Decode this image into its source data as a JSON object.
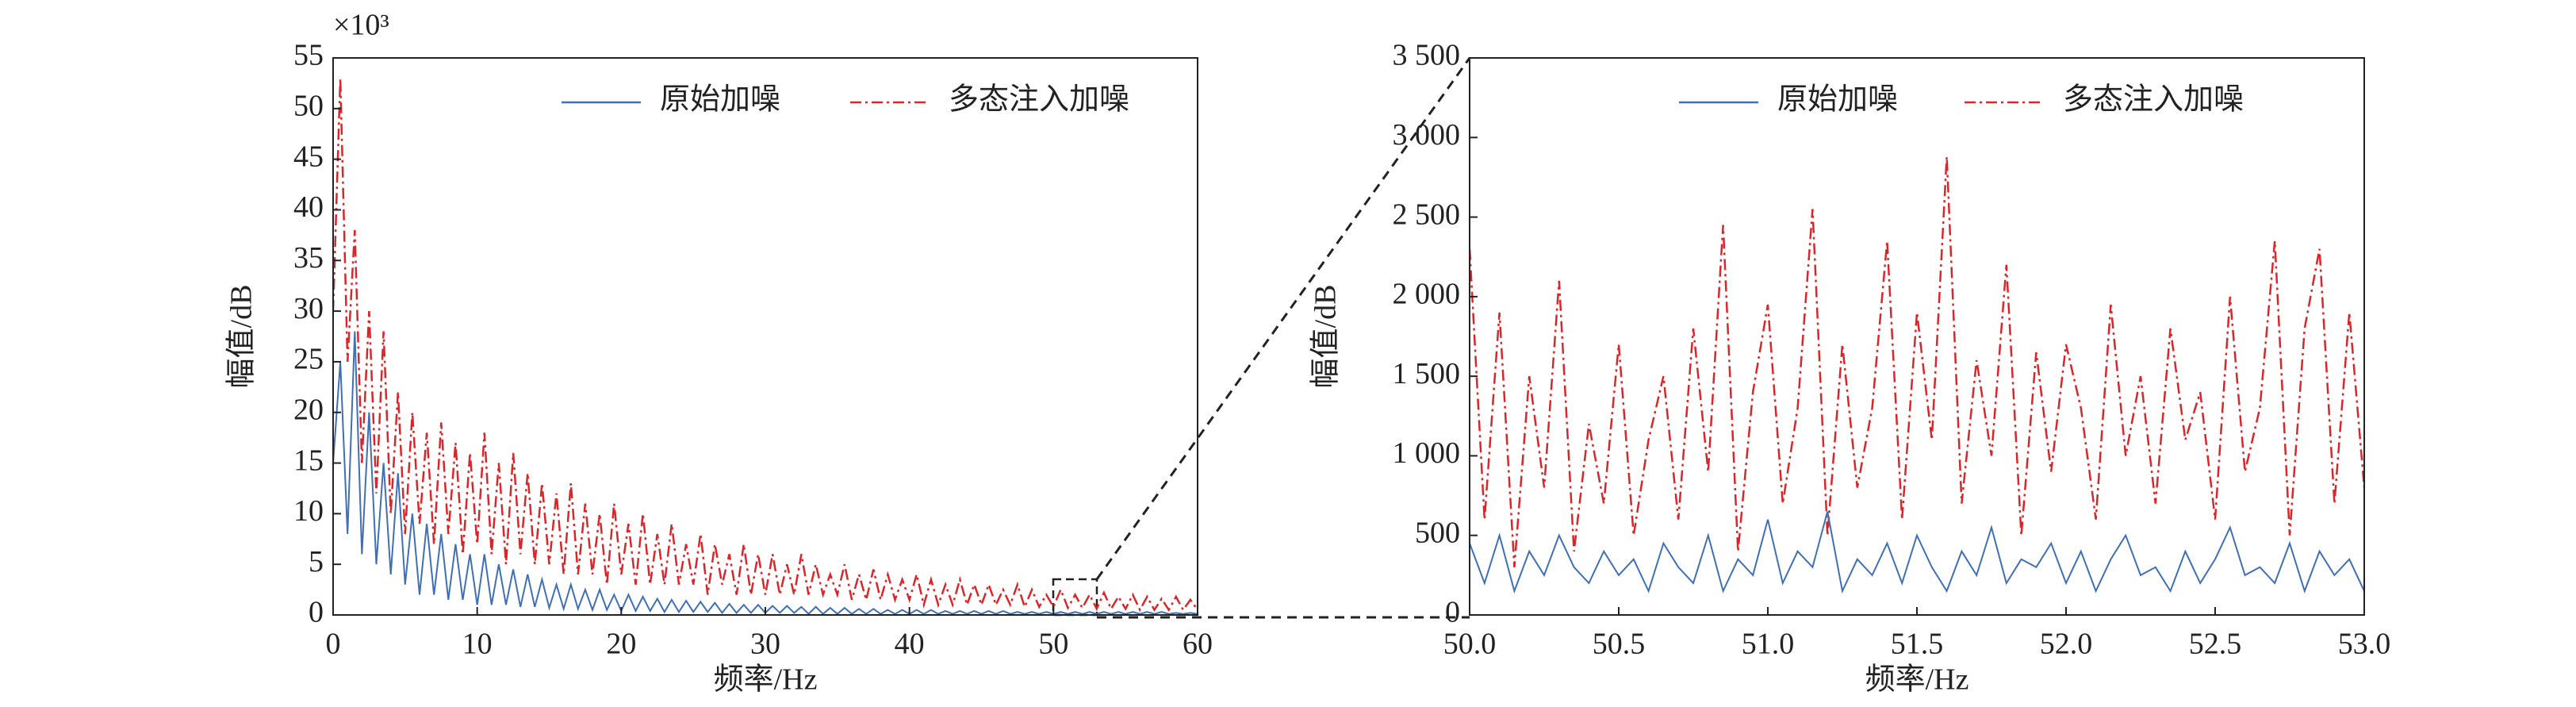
{
  "chart_data": [
    {
      "type": "line",
      "annotation": "×10³",
      "xlabel": "频率/Hz",
      "ylabel": "幅值/dB",
      "legend": "upper right",
      "xlim": [
        0,
        60
      ],
      "ylim": [
        0,
        55
      ],
      "xticks": [
        0,
        10,
        20,
        30,
        40,
        50,
        60
      ],
      "yticks": [
        0,
        5,
        10,
        15,
        20,
        25,
        30,
        35,
        40,
        45,
        50,
        55
      ],
      "x": [
        0,
        0.5,
        1,
        1.5,
        2,
        2.5,
        3,
        3.5,
        4,
        4.5,
        5,
        5.5,
        6,
        6.5,
        7,
        7.5,
        8,
        8.5,
        9,
        9.5,
        10,
        10.5,
        11,
        11.5,
        12,
        12.5,
        13,
        13.5,
        14,
        14.5,
        15,
        15.5,
        16,
        16.5,
        17,
        17.5,
        18,
        18.5,
        19,
        19.5,
        20,
        20.5,
        21,
        21.5,
        22,
        22.5,
        23,
        23.5,
        24,
        24.5,
        25,
        25.5,
        26,
        26.5,
        27,
        27.5,
        28,
        28.5,
        29,
        29.5,
        30,
        30.5,
        31,
        31.5,
        32,
        32.5,
        33,
        33.5,
        34,
        34.5,
        35,
        35.5,
        36,
        36.5,
        37,
        37.5,
        38,
        38.5,
        39,
        39.5,
        40,
        40.5,
        41,
        41.5,
        42,
        42.5,
        43,
        43.5,
        44,
        44.5,
        45,
        45.5,
        46,
        46.5,
        47,
        47.5,
        48,
        48.5,
        49,
        49.5,
        50,
        50.5,
        51,
        51.5,
        52,
        52.5,
        53,
        53.5,
        54,
        54.5,
        55,
        55.5,
        56,
        56.5,
        57,
        57.5,
        58,
        58.5,
        59,
        59.5,
        60
      ],
      "series": [
        {
          "name": "原始加噪",
          "color": "#3f6fb5",
          "dash": false,
          "values": [
            15,
            25,
            8,
            28,
            6,
            20,
            5,
            15,
            4,
            14,
            3,
            10,
            2,
            9,
            2,
            8,
            1.5,
            7,
            1.5,
            6,
            1,
            6,
            1,
            5,
            1,
            4.5,
            0.8,
            4,
            0.8,
            3.5,
            0.7,
            3,
            0.6,
            3,
            0.6,
            2.5,
            0.5,
            2.5,
            0.5,
            2,
            0.4,
            2,
            0.4,
            1.8,
            0.4,
            1.6,
            0.3,
            1.5,
            0.3,
            1.4,
            0.3,
            1.3,
            0.3,
            1.2,
            0.2,
            1.1,
            0.2,
            1,
            0.2,
            1,
            0.2,
            0.9,
            0.2,
            0.9,
            0.2,
            0.8,
            0.1,
            0.8,
            0.1,
            0.7,
            0.1,
            0.7,
            0.1,
            0.6,
            0.1,
            0.6,
            0.1,
            0.5,
            0.1,
            0.5,
            0.1,
            0.5,
            0.1,
            0.5,
            0.1,
            0.4,
            0.1,
            0.4,
            0.1,
            0.4,
            0.1,
            0.4,
            0.1,
            0.4,
            0.1,
            0.3,
            0.1,
            0.3,
            0.1,
            0.3,
            0.1,
            0.3,
            0.1,
            0.3,
            0.1,
            0.3,
            0.1,
            0.3,
            0.1,
            0.3,
            0.1,
            0.3,
            0.1,
            0.3,
            0.1,
            0.3,
            0.1,
            0.2,
            0.1,
            0.2,
            0.1
          ]
        },
        {
          "name": "多态注入加噪",
          "color": "#d9262a",
          "dash": true,
          "values": [
            30,
            53,
            25,
            38,
            15,
            30,
            12,
            28,
            10,
            22,
            8,
            20,
            9,
            18,
            7,
            19,
            8,
            17,
            6,
            16,
            7,
            18,
            6,
            15,
            5,
            16,
            6,
            14,
            5,
            13,
            5,
            12,
            4,
            13,
            4,
            11,
            4,
            10,
            3,
            11,
            4,
            9,
            3,
            10,
            3,
            8,
            3,
            9,
            3,
            7,
            3,
            8,
            2,
            7,
            3,
            6,
            2,
            7,
            2,
            6,
            2,
            6,
            2,
            5,
            2,
            6,
            2,
            5,
            2,
            4,
            2,
            5,
            1.5,
            4,
            1.5,
            4.5,
            1.5,
            4,
            1.5,
            3.5,
            1.5,
            4,
            1,
            3.5,
            1,
            3,
            1,
            3.5,
            1,
            3,
            1,
            3,
            1,
            2.5,
            1,
            3,
            0.8,
            2.5,
            0.8,
            2,
            0.8,
            2.5,
            0.7,
            2,
            0.7,
            2,
            0.6,
            2.2,
            0.6,
            1.8,
            0.6,
            2,
            0.5,
            1.8,
            0.5,
            1.6,
            0.5,
            1.8,
            0.5,
            1.5,
            0.5
          ]
        }
      ]
    },
    {
      "type": "line",
      "xlabel": "频率/Hz",
      "ylabel": "幅值/dB",
      "legend": "upper right",
      "xlim": [
        50,
        53
      ],
      "ylim": [
        0,
        3500
      ],
      "xticks": [
        {
          "value": 50,
          "label": "50.0"
        },
        50.5,
        {
          "value": 51,
          "label": "51.0"
        },
        51.5,
        {
          "value": 52,
          "label": "52.0"
        },
        52.5,
        {
          "value": 53,
          "label": "53.0"
        }
      ],
      "yticks": [
        0,
        500,
        {
          "value": 1000,
          "label": "1 000"
        },
        {
          "value": 1500,
          "label": "1 500"
        },
        {
          "value": 2000,
          "label": "2 000"
        },
        {
          "value": 2500,
          "label": "2 500"
        },
        {
          "value": 3000,
          "label": "3 000"
        },
        {
          "value": 3500,
          "label": "3 500"
        }
      ],
      "x": [
        50,
        50.05,
        50.1,
        50.15,
        50.2,
        50.25,
        50.3,
        50.35,
        50.4,
        50.45,
        50.5,
        50.55,
        50.6,
        50.65,
        50.7,
        50.75,
        50.8,
        50.85,
        50.9,
        50.95,
        51,
        51.05,
        51.1,
        51.15,
        51.2,
        51.25,
        51.3,
        51.35,
        51.4,
        51.45,
        51.5,
        51.55,
        51.6,
        51.65,
        51.7,
        51.75,
        51.8,
        51.85,
        51.9,
        51.95,
        52,
        52.05,
        52.1,
        52.15,
        52.2,
        52.25,
        52.3,
        52.35,
        52.4,
        52.45,
        52.5,
        52.55,
        52.6,
        52.65,
        52.7,
        52.75,
        52.8,
        52.85,
        52.9,
        52.95,
        53
      ],
      "series": [
        {
          "name": "原始加噪",
          "color": "#3f6fb5",
          "dash": false,
          "values": [
            450,
            200,
            500,
            150,
            400,
            250,
            500,
            300,
            200,
            400,
            250,
            350,
            150,
            450,
            300,
            200,
            500,
            150,
            350,
            250,
            600,
            200,
            400,
            300,
            650,
            150,
            350,
            250,
            450,
            200,
            500,
            300,
            150,
            400,
            250,
            550,
            200,
            350,
            300,
            450,
            200,
            400,
            150,
            350,
            500,
            250,
            300,
            150,
            400,
            200,
            350,
            550,
            250,
            300,
            200,
            450,
            150,
            400,
            250,
            350,
            150
          ]
        },
        {
          "name": "多态注入加噪",
          "color": "#d9262a",
          "dash": true,
          "values": [
            2300,
            600,
            1900,
            300,
            1500,
            800,
            2100,
            400,
            1200,
            700,
            1700,
            500,
            1100,
            1500,
            600,
            1800,
            900,
            2450,
            400,
            1400,
            1950,
            700,
            1300,
            2550,
            500,
            1700,
            800,
            1300,
            2350,
            600,
            1900,
            1100,
            2880,
            700,
            1600,
            1000,
            2200,
            500,
            1650,
            900,
            1700,
            1300,
            600,
            1950,
            1000,
            1500,
            700,
            1800,
            1100,
            1400,
            600,
            2000,
            900,
            1300,
            2350,
            500,
            1800,
            2300,
            700,
            1900,
            800
          ]
        }
      ]
    }
  ]
}
